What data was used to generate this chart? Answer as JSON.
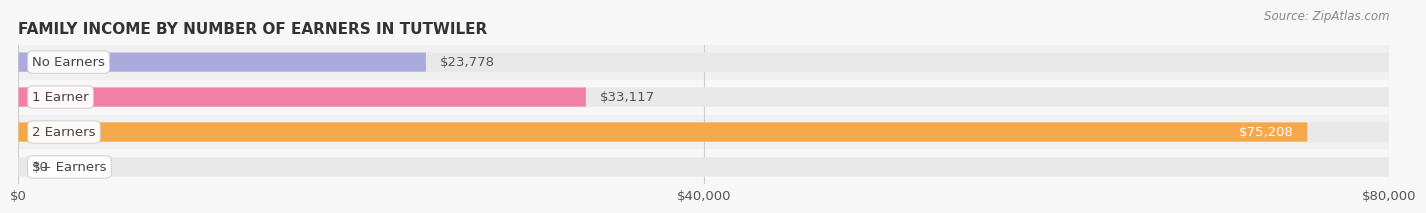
{
  "title": "FAMILY INCOME BY NUMBER OF EARNERS IN TUTWILER",
  "source": "Source: ZipAtlas.com",
  "categories": [
    "No Earners",
    "1 Earner",
    "2 Earners",
    "3+ Earners"
  ],
  "values": [
    23778,
    33117,
    75208,
    0
  ],
  "bar_colors": [
    "#aaaadd",
    "#f080a8",
    "#f5a84a",
    "#f5b8a8"
  ],
  "value_labels": [
    "$23,778",
    "$33,117",
    "$75,208",
    "$0"
  ],
  "value_label_inside": [
    false,
    false,
    true,
    false
  ],
  "xlim": [
    0,
    80000
  ],
  "xticks": [
    0,
    40000,
    80000
  ],
  "xtick_labels": [
    "$0",
    "$40,000",
    "$80,000"
  ],
  "background_color": "#f7f7f7",
  "bar_bg_color": "#e8e8e8",
  "row_bg_colors": [
    "#f0f0f0",
    "#f7f7f7",
    "#f0f0f0",
    "#f7f7f7"
  ],
  "title_fontsize": 11,
  "tick_fontsize": 9.5,
  "label_fontsize": 9.5,
  "value_fontsize": 9.5,
  "bar_height": 0.55,
  "grid_color": "#cccccc",
  "label_text_color": "#444444",
  "value_text_color_outside": "#555555",
  "value_text_color_inside": "#ffffff"
}
